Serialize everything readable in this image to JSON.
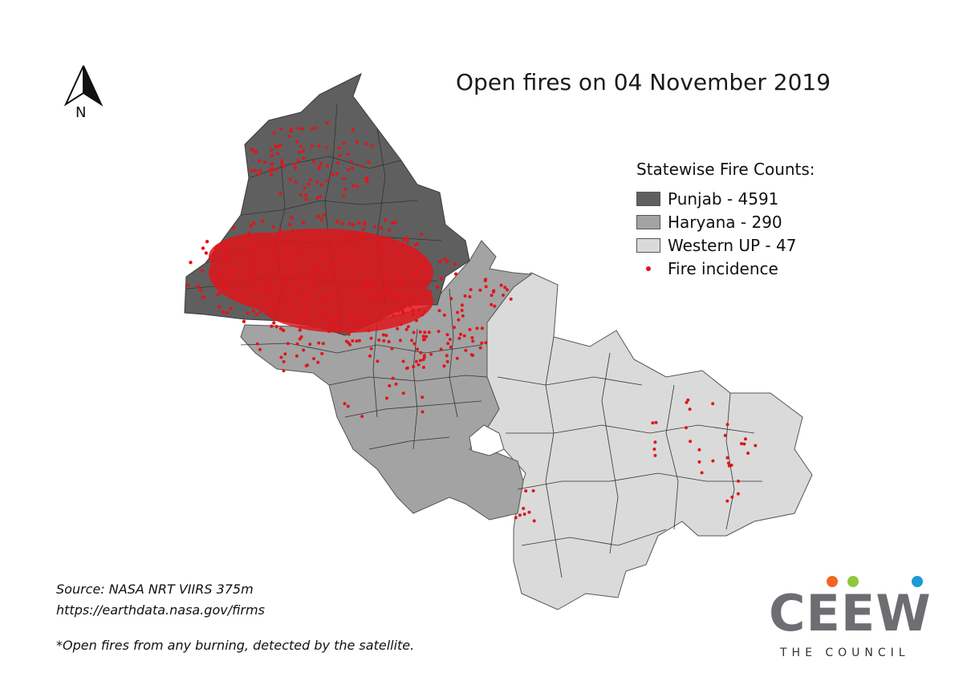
{
  "title": "Open fires on 04 November 2019",
  "north_label": "N",
  "legend": {
    "title": "Statewise Fire Counts:",
    "items": [
      {
        "label": "Punjab - 4591",
        "color": "#5f5f5f"
      },
      {
        "label": "Haryana - 290",
        "color": "#a3a3a3"
      },
      {
        "label": "Western UP - 47",
        "color": "#dadada"
      }
    ],
    "fire_label": "Fire incidence",
    "fire_color": "#e0161b"
  },
  "source": {
    "line1": "Source: NASA NRT VIIRS 375m",
    "line2": "https://earthdata.nasa.gov/firms"
  },
  "note": "*Open fires from any burning, detected by the satellite.",
  "logo": {
    "word": "CEEW",
    "subtitle": "THE COUNCIL",
    "dot_colors": [
      "#f26522",
      "#8dc63f",
      "#8dc63f",
      "#1b9ad6"
    ]
  }
}
